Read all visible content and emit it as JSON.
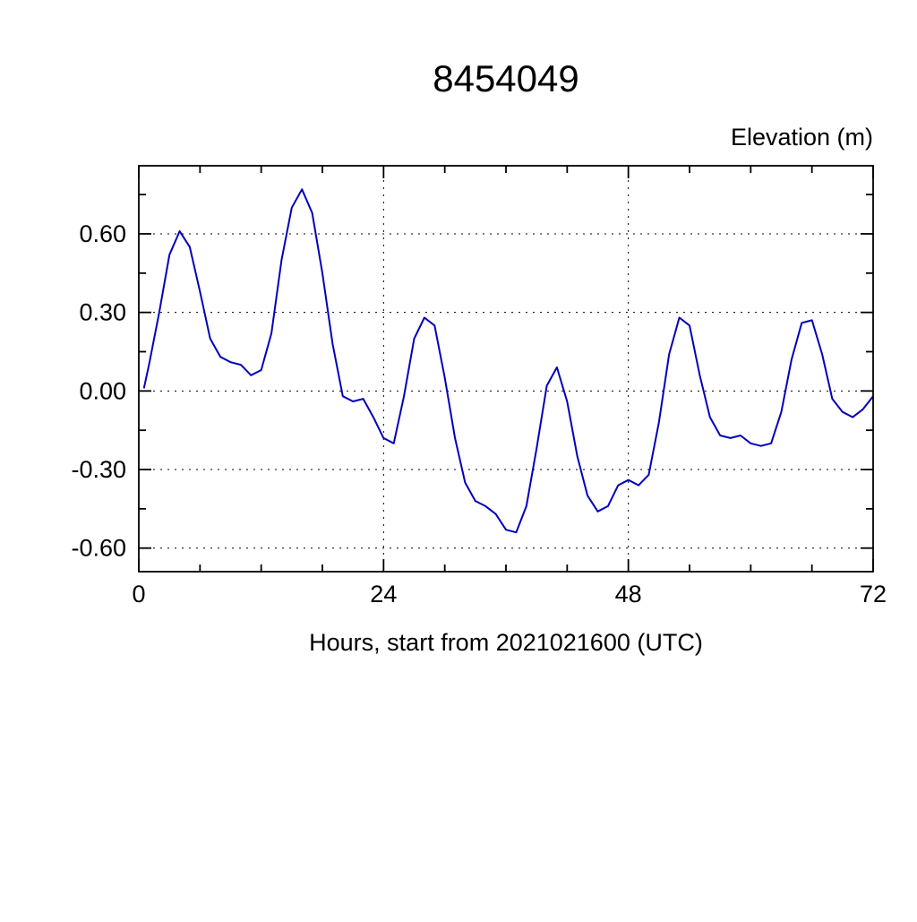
{
  "page": {
    "background": "#ffffff"
  },
  "chart_data": {
    "type": "line",
    "title": "8454049",
    "ylabel": "Elevation (m)",
    "xlabel": "Hours, start from 2021021600 (UTC)",
    "xlim": [
      0,
      72
    ],
    "ylim": [
      -0.69,
      0.86
    ],
    "xticks": [
      0,
      24,
      48,
      72
    ],
    "xtick_labels": [
      "0",
      "24",
      "48",
      "72"
    ],
    "x_minor_step": 6,
    "yticks": [
      -0.6,
      -0.3,
      0.0,
      0.3,
      0.6
    ],
    "ytick_labels": [
      "-0.60",
      "-0.30",
      "0.00",
      "0.30",
      "0.60"
    ],
    "y_minor_step": 0.15,
    "grid": true,
    "grid_style": "dotted",
    "line_color": "#0000bb",
    "axis_color": "#000000",
    "legend": "none",
    "series": [
      {
        "name": "elevation",
        "x": [
          0.5,
          1,
          2,
          3,
          4,
          5,
          6,
          7,
          8,
          9,
          10,
          11,
          12,
          13,
          14,
          15,
          16,
          17,
          18,
          19,
          20,
          21,
          22,
          23,
          24,
          25,
          26,
          27,
          28,
          29,
          30,
          31,
          32,
          33,
          34,
          35,
          36,
          37,
          38,
          39,
          40,
          41,
          42,
          43,
          44,
          45,
          46,
          47,
          48,
          49,
          50,
          51,
          52,
          53,
          54,
          55,
          56,
          57,
          58,
          59,
          60,
          61,
          62,
          63,
          64,
          65,
          66,
          67,
          68,
          69,
          70,
          71,
          72
        ],
        "y": [
          0.01,
          0.1,
          0.3,
          0.52,
          0.61,
          0.55,
          0.38,
          0.2,
          0.13,
          0.11,
          0.1,
          0.06,
          0.08,
          0.22,
          0.5,
          0.7,
          0.77,
          0.68,
          0.45,
          0.18,
          -0.02,
          -0.04,
          -0.03,
          -0.1,
          -0.18,
          -0.2,
          -0.02,
          0.2,
          0.28,
          0.25,
          0.05,
          -0.18,
          -0.35,
          -0.42,
          -0.44,
          -0.47,
          -0.53,
          -0.54,
          -0.44,
          -0.22,
          0.02,
          0.09,
          -0.04,
          -0.25,
          -0.4,
          -0.46,
          -0.44,
          -0.36,
          -0.34,
          -0.36,
          -0.32,
          -0.12,
          0.14,
          0.28,
          0.25,
          0.06,
          -0.1,
          -0.17,
          -0.18,
          -0.17,
          -0.2,
          -0.21,
          -0.2,
          -0.08,
          0.12,
          0.26,
          0.27,
          0.14,
          -0.03,
          -0.08,
          -0.1,
          -0.07,
          -0.02
        ]
      }
    ]
  }
}
